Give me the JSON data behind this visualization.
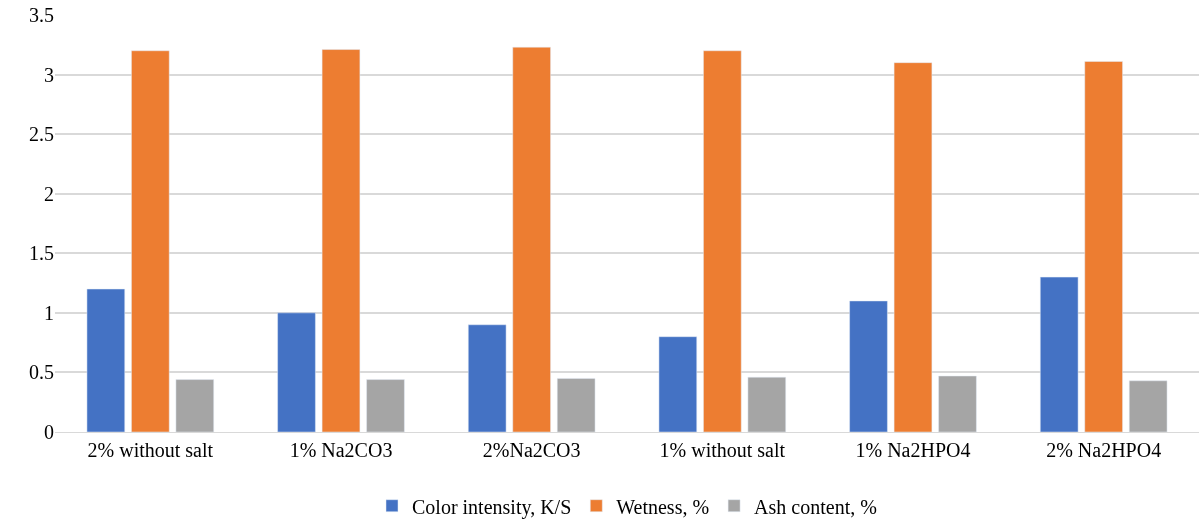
{
  "chart_data": {
    "type": "bar",
    "categories": [
      "2% without salt",
      "1% Na2CO3",
      "2%Na2CO3",
      "1% without salt",
      "1% Na2HPO4",
      "2% Na2HPO4"
    ],
    "series": [
      {
        "name": "Color intensity, K/S",
        "color": "#4472c4",
        "values": [
          1.2,
          1.0,
          0.9,
          0.8,
          1.1,
          1.3
        ]
      },
      {
        "name": "Wetness, %",
        "color": "#ed7d31",
        "values": [
          3.2,
          3.21,
          3.23,
          3.2,
          3.1,
          3.11
        ]
      },
      {
        "name": "Ash content, %",
        "color": "#a5a5a5",
        "values": [
          0.44,
          0.44,
          0.45,
          0.46,
          0.47,
          0.43
        ]
      }
    ],
    "ylim": [
      0,
      3.5
    ],
    "yticks": [
      0,
      0.5,
      1,
      1.5,
      2,
      2.5,
      3,
      3.5
    ],
    "grid": "y",
    "legend": "bottom"
  }
}
